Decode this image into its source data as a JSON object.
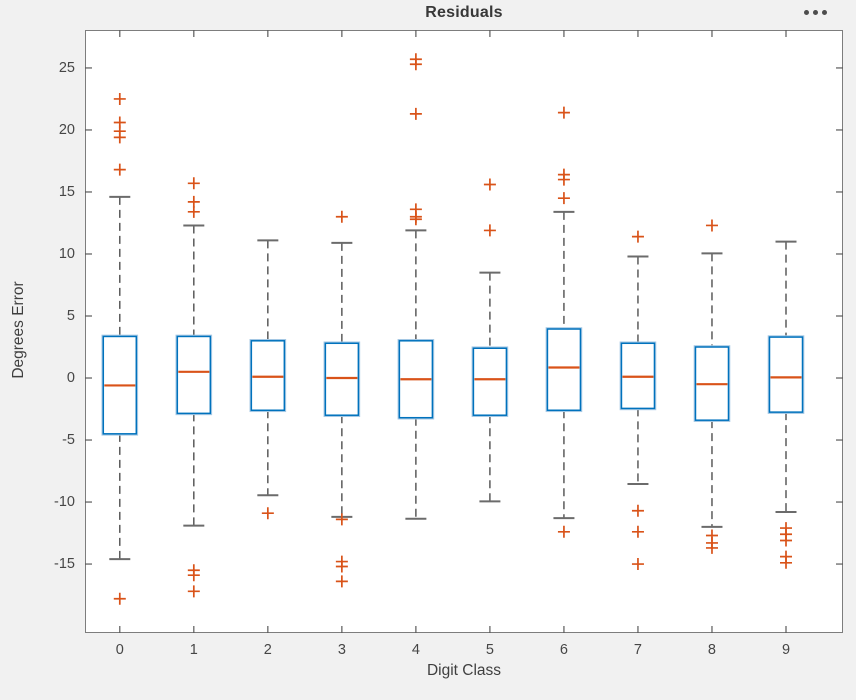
{
  "figure": {
    "background": "#f1f1f1",
    "plot_background": "#ffffff",
    "menu_icon": "ellipsis-options"
  },
  "chart_data": {
    "type": "box",
    "title": "Residuals",
    "xlabel": "Digit Class",
    "ylabel": "Degrees Error",
    "categories": [
      "0",
      "1",
      "2",
      "3",
      "4",
      "5",
      "6",
      "7",
      "8",
      "9"
    ],
    "y_ticks": [
      25,
      20,
      15,
      10,
      5,
      0,
      -5,
      -10,
      -15
    ],
    "xlim": [
      -0.47,
      9.77
    ],
    "ylim": [
      -20.56,
      28.06
    ],
    "grid": false,
    "legend": null,
    "boxes": [
      {
        "class": "0",
        "whisker_high": 14.6,
        "q3": 3.35,
        "median": -0.6,
        "q1": -4.5,
        "whisker_low": -14.6,
        "outliers_high": [
          22.5,
          20.6,
          19.9,
          19.4,
          16.8
        ],
        "outliers_low": [
          -17.8
        ]
      },
      {
        "class": "1",
        "whisker_high": 12.3,
        "q3": 3.35,
        "median": 0.5,
        "q1": -2.85,
        "whisker_low": -11.9,
        "outliers_high": [
          15.7,
          14.2,
          13.4
        ],
        "outliers_low": [
          -15.5,
          -15.9,
          -17.2
        ]
      },
      {
        "class": "2",
        "whisker_high": 11.1,
        "q3": 3.0,
        "median": 0.1,
        "q1": -2.6,
        "whisker_low": -9.45,
        "outliers_high": [],
        "outliers_low": [
          -10.9
        ]
      },
      {
        "class": "3",
        "whisker_high": 10.9,
        "q3": 2.8,
        "median": 0.0,
        "q1": -3.0,
        "whisker_low": -11.2,
        "outliers_high": [
          13.0
        ],
        "outliers_low": [
          -11.4,
          -14.8,
          -15.2,
          -16.4
        ]
      },
      {
        "class": "4",
        "whisker_high": 11.9,
        "q3": 3.0,
        "median": -0.1,
        "q1": -3.2,
        "whisker_low": -11.35,
        "outliers_high": [
          25.7,
          25.3,
          21.3,
          13.6,
          13.0,
          12.8
        ],
        "outliers_low": []
      },
      {
        "class": "5",
        "whisker_high": 8.5,
        "q3": 2.4,
        "median": -0.1,
        "q1": -3.0,
        "whisker_low": -9.95,
        "outliers_high": [
          15.6,
          11.9
        ],
        "outliers_low": []
      },
      {
        "class": "6",
        "whisker_high": 13.4,
        "q3": 3.95,
        "median": 0.85,
        "q1": -2.6,
        "whisker_low": -11.3,
        "outliers_high": [
          21.4,
          16.4,
          16.0,
          14.5
        ],
        "outliers_low": [
          -12.4
        ]
      },
      {
        "class": "7",
        "whisker_high": 9.8,
        "q3": 2.8,
        "median": 0.1,
        "q1": -2.45,
        "whisker_low": -8.55,
        "outliers_high": [
          11.4
        ],
        "outliers_low": [
          -10.7,
          -12.4,
          -15.0
        ]
      },
      {
        "class": "8",
        "whisker_high": 10.05,
        "q3": 2.5,
        "median": -0.5,
        "q1": -3.4,
        "whisker_low": -12.0,
        "outliers_high": [
          12.3
        ],
        "outliers_low": [
          -12.7,
          -13.3,
          -13.7
        ]
      },
      {
        "class": "9",
        "whisker_high": 11.0,
        "q3": 3.3,
        "median": 0.05,
        "q1": -2.75,
        "whisker_low": -10.8,
        "outliers_high": [],
        "outliers_low": [
          -12.1,
          -12.6,
          -13.1,
          -14.4,
          -14.9
        ]
      }
    ],
    "colors": {
      "box_edge": "#0072BD",
      "box_halo": "#a5c8e4",
      "median": "#D95319",
      "outlier": "#D95319",
      "whisker": "#4f4f4f",
      "whisker_cap": "#6b6b6b",
      "axes_frame": "#7d7d7d",
      "tick": "#5a5a5a"
    }
  }
}
